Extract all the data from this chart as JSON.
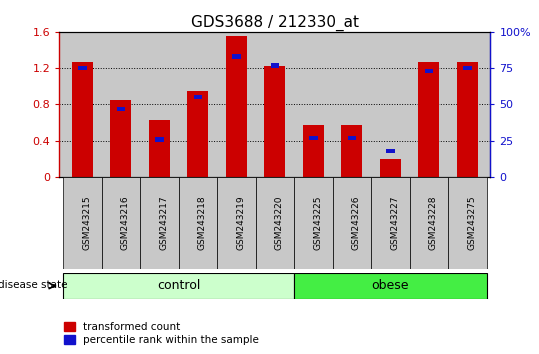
{
  "title": "GDS3688 / 212330_at",
  "samples": [
    "GSM243215",
    "GSM243216",
    "GSM243217",
    "GSM243218",
    "GSM243219",
    "GSM243220",
    "GSM243225",
    "GSM243226",
    "GSM243227",
    "GSM243228",
    "GSM243275"
  ],
  "transformed_count": [
    1.27,
    0.85,
    0.63,
    0.95,
    1.55,
    1.22,
    0.57,
    0.57,
    0.2,
    1.27,
    1.27
  ],
  "percentile_rank": [
    75,
    47,
    26,
    55,
    83,
    77,
    27,
    27,
    18,
    73,
    75
  ],
  "n_control": 6,
  "n_obese": 5,
  "bar_width": 0.55,
  "bar_color_red": "#CC0000",
  "bar_color_blue": "#1111CC",
  "ylim_left": [
    0,
    1.6
  ],
  "ylim_right": [
    0,
    100
  ],
  "yticks_left": [
    0,
    0.4,
    0.8,
    1.2,
    1.6
  ],
  "yticks_right": [
    0,
    25,
    50,
    75,
    100
  ],
  "ytick_labels_left": [
    "0",
    "0.4",
    "0.8",
    "1.2",
    "1.6"
  ],
  "ytick_labels_right": [
    "0",
    "25",
    "50",
    "75",
    "100%"
  ],
  "control_label": "control",
  "obese_label": "obese",
  "disease_state_label": "disease state",
  "legend_red": "transformed count",
  "legend_blue": "percentile rank within the sample",
  "control_color": "#CCFFCC",
  "obese_color": "#44EE44",
  "axis_bg_color": "#C8C8C8",
  "label_bg_color": "#C8C8C8",
  "blue_bar_height": 0.05,
  "percentile_scale": 1.6
}
